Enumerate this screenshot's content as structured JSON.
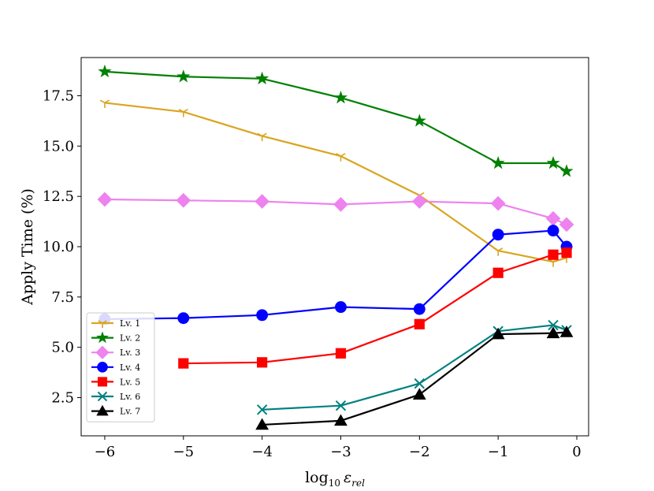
{
  "chart_data": {
    "type": "line",
    "title": "",
    "xlabel": "log10 ε_rel",
    "xlabel_main": "log",
    "xlabel_base": "10",
    "xlabel_symbol": "ε",
    "xlabel_sub": "rel",
    "ylabel": "Apply Time (%)",
    "xlim": [
      -6.3,
      0.15
    ],
    "ylim": [
      0.6,
      19.4
    ],
    "xticks": [
      -6,
      -5,
      -4,
      -3,
      -2,
      -1,
      0
    ],
    "xtick_labels": [
      "−6",
      "−5",
      "−4",
      "−3",
      "−2",
      "−1",
      "0"
    ],
    "yticks": [
      2.5,
      5.0,
      7.5,
      10.0,
      12.5,
      15.0,
      17.5
    ],
    "ytick_labels": [
      "2.5",
      "5.0",
      "7.5",
      "10.0",
      "12.5",
      "15.0",
      "17.5"
    ],
    "grid": false,
    "legend_position": "lower-left",
    "series": [
      {
        "name": "Lv. 1",
        "color": "#daa520",
        "marker": "tri_down",
        "x": [
          -6,
          -5,
          -4,
          -3,
          -2,
          -1,
          -0.3,
          -0.13
        ],
        "y": [
          17.15,
          16.7,
          15.5,
          14.5,
          12.55,
          9.8,
          9.25,
          9.45
        ]
      },
      {
        "name": "Lv. 2",
        "color": "#008000",
        "marker": "star",
        "x": [
          -6,
          -5,
          -4,
          -3,
          -2,
          -1,
          -0.3,
          -0.13
        ],
        "y": [
          18.7,
          18.45,
          18.35,
          17.4,
          16.25,
          14.15,
          14.15,
          13.75
        ]
      },
      {
        "name": "Lv. 3",
        "color": "#ee82ee",
        "marker": "diamond",
        "x": [
          -6,
          -5,
          -4,
          -3,
          -2,
          -1,
          -0.3,
          -0.13
        ],
        "y": [
          12.35,
          12.3,
          12.25,
          12.1,
          12.25,
          12.15,
          11.4,
          11.1
        ]
      },
      {
        "name": "Lv. 4",
        "color": "#0000ff",
        "marker": "circle",
        "x": [
          -6,
          -5,
          -4,
          -3,
          -2,
          -1,
          -0.3,
          -0.13
        ],
        "y": [
          6.4,
          6.45,
          6.6,
          7.0,
          6.9,
          10.6,
          10.8,
          10.0
        ]
      },
      {
        "name": "Lv. 5",
        "color": "#ff0000",
        "marker": "square",
        "x": [
          -5,
          -4,
          -3,
          -2,
          -1,
          -0.3,
          -0.13
        ],
        "y": [
          4.2,
          4.25,
          4.7,
          6.15,
          8.7,
          9.6,
          9.7
        ]
      },
      {
        "name": "Lv. 6",
        "color": "#008080",
        "marker": "x",
        "x": [
          -4,
          -3,
          -2,
          -1,
          -0.3,
          -0.13
        ],
        "y": [
          1.9,
          2.1,
          3.2,
          5.8,
          6.1,
          5.85
        ]
      },
      {
        "name": "Lv. 7",
        "color": "#000000",
        "marker": "triangle_up",
        "x": [
          -4,
          -3,
          -2,
          -1,
          -0.3,
          -0.13
        ],
        "y": [
          1.15,
          1.35,
          2.65,
          5.65,
          5.7,
          5.75
        ]
      }
    ]
  }
}
